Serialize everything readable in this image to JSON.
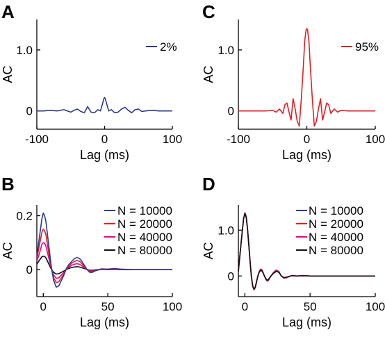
{
  "chart_data": [
    {
      "panel": "A",
      "type": "line",
      "xlabel": "Lag (ms)",
      "ylabel": "AC",
      "xlim": [
        -100,
        100
      ],
      "ylim": [
        -0.3,
        1.5
      ],
      "xticks": [
        -100,
        0,
        100
      ],
      "yticks": [
        0,
        1.0
      ],
      "ytick_labels": [
        "0",
        "1.0"
      ],
      "legend_position": "top-right",
      "series": [
        {
          "name": "2%",
          "color": "#2b3990",
          "x": [
            -100,
            -90,
            -80,
            -70,
            -60,
            -55,
            -50,
            -45,
            -40,
            -35,
            -30,
            -25,
            -20,
            -15,
            -10,
            -6,
            -3,
            -1,
            0,
            1,
            3,
            6,
            10,
            15,
            20,
            25,
            30,
            35,
            40,
            45,
            50,
            55,
            60,
            70,
            80,
            90,
            100
          ],
          "y": [
            0,
            0,
            0.01,
            0,
            0.02,
            0.0,
            -0.02,
            0.01,
            0.03,
            -0.01,
            -0.03,
            0.07,
            -0.02,
            -0.03,
            0.02,
            0.0,
            0.12,
            0.2,
            0.22,
            0.2,
            0.12,
            0.0,
            0.02,
            -0.03,
            -0.02,
            0.03,
            0.06,
            0.01,
            -0.03,
            0.02,
            0.03,
            -0.01,
            0,
            0.01,
            0,
            0,
            0
          ]
        }
      ]
    },
    {
      "panel": "C",
      "type": "line",
      "xlabel": "Lag (ms)",
      "ylabel": "AC",
      "xlim": [
        -100,
        100
      ],
      "ylim": [
        -0.3,
        1.5
      ],
      "xticks": [
        -100,
        0,
        100
      ],
      "yticks": [
        0,
        1.0
      ],
      "ytick_labels": [
        "0",
        "1.0"
      ],
      "legend_position": "top-right",
      "series": [
        {
          "name": "95%",
          "color": "#e31e24",
          "x": [
            -100,
            -80,
            -70,
            -60,
            -50,
            -45,
            -40,
            -35,
            -32,
            -29,
            -26,
            -23,
            -20,
            -17,
            -14,
            -11,
            -8,
            -5,
            -3,
            -1,
            0,
            1,
            3,
            5,
            8,
            11,
            14,
            17,
            20,
            23,
            26,
            29,
            32,
            35,
            40,
            45,
            50,
            60,
            70,
            80,
            100
          ],
          "y": [
            0,
            0,
            0,
            0,
            0.01,
            -0.02,
            0.03,
            -0.04,
            0.1,
            0.13,
            -0.02,
            -0.15,
            0.2,
            0.03,
            -0.17,
            -0.25,
            0.2,
            0.75,
            1.15,
            1.33,
            1.35,
            1.33,
            1.15,
            0.75,
            0.2,
            -0.25,
            -0.17,
            0.03,
            0.2,
            -0.15,
            -0.02,
            0.13,
            0.1,
            -0.04,
            0.03,
            -0.02,
            0.01,
            0,
            0,
            0,
            0
          ]
        }
      ]
    },
    {
      "panel": "B",
      "type": "line",
      "xlabel": "Lag (ms)",
      "ylabel": "AC",
      "xlim": [
        -5,
        100
      ],
      "ylim": [
        -0.1,
        0.24
      ],
      "xticks": [
        0,
        50,
        100
      ],
      "yticks": [
        0,
        0.2
      ],
      "ytick_labels": [
        "0",
        "0.2"
      ],
      "legend_position": "top-right",
      "x": [
        -5,
        -3,
        -1,
        0,
        1,
        2,
        4,
        6,
        8,
        10,
        12,
        14,
        16,
        18,
        20,
        22,
        24,
        26,
        28,
        30,
        32,
        34,
        36,
        38,
        40,
        45,
        50,
        55,
        60,
        70,
        80,
        90,
        100
      ],
      "series": [
        {
          "name": "N = 10000",
          "color": "#2b3990",
          "y": [
            0.05,
            0.12,
            0.19,
            0.21,
            0.2,
            0.18,
            0.1,
            0.02,
            -0.04,
            -0.065,
            -0.06,
            -0.04,
            -0.02,
            0.005,
            0.02,
            0.03,
            0.04,
            0.045,
            0.042,
            0.03,
            0.015,
            0.0,
            -0.01,
            -0.01,
            -0.005,
            0.003,
            0.002,
            0.004,
            0.002,
            0.0,
            0,
            0,
            0
          ]
        },
        {
          "name": "N = 20000",
          "color": "#e31e24",
          "y": [
            0.04,
            0.09,
            0.14,
            0.15,
            0.145,
            0.13,
            0.07,
            0.01,
            -0.03,
            -0.048,
            -0.045,
            -0.03,
            -0.015,
            0.004,
            0.015,
            0.024,
            0.03,
            0.034,
            0.031,
            0.022,
            0.011,
            0.0,
            -0.007,
            -0.007,
            -0.004,
            0.002,
            0.002,
            0.003,
            0.001,
            0.0,
            0,
            0,
            0
          ]
        },
        {
          "name": "N = 40000",
          "color": "#ec008c",
          "y": [
            0.03,
            0.06,
            0.095,
            0.1,
            0.098,
            0.088,
            0.048,
            0.008,
            -0.02,
            -0.032,
            -0.03,
            -0.02,
            -0.01,
            0.002,
            0.01,
            0.016,
            0.02,
            0.022,
            0.02,
            0.014,
            0.007,
            0.0,
            -0.005,
            -0.005,
            -0.003,
            0.001,
            0.001,
            0.002,
            0.001,
            0.0,
            0,
            0,
            0
          ]
        },
        {
          "name": "N = 80000",
          "color": "#111111",
          "y": [
            0.02,
            0.035,
            0.048,
            0.05,
            0.049,
            0.044,
            0.024,
            0.004,
            -0.01,
            -0.016,
            -0.015,
            -0.01,
            -0.005,
            0.001,
            0.005,
            0.008,
            0.01,
            0.011,
            0.01,
            0.007,
            0.004,
            0.0,
            -0.002,
            -0.002,
            -0.001,
            0.001,
            0.0,
            0.001,
            0.0,
            0.0,
            0,
            0,
            0
          ]
        }
      ]
    },
    {
      "panel": "D",
      "type": "line",
      "xlabel": "Lag (ms)",
      "ylabel": "AC",
      "xlim": [
        -5,
        100
      ],
      "ylim": [
        -0.45,
        1.55
      ],
      "xticks": [
        0,
        50,
        100
      ],
      "yticks": [
        0,
        1.0
      ],
      "ytick_labels": [
        "0",
        "1.0"
      ],
      "legend_position": "top-right",
      "x": [
        -5,
        -3,
        -1,
        0,
        1,
        2,
        3,
        4,
        5,
        6,
        7,
        8,
        9,
        10,
        11,
        12,
        13,
        14,
        15,
        16,
        17,
        18,
        19,
        20,
        22,
        24,
        26,
        28,
        30,
        32,
        34,
        36,
        40,
        45,
        50,
        60,
        70,
        80,
        90,
        100
      ],
      "series": [
        {
          "name": "N = 10000",
          "color": "#2b3990",
          "y": [
            0.1,
            0.7,
            1.25,
            1.38,
            1.3,
            1.05,
            0.7,
            0.32,
            -0.02,
            -0.22,
            -0.3,
            -0.25,
            -0.12,
            0.0,
            0.1,
            0.15,
            0.14,
            0.08,
            0.0,
            -0.07,
            -0.11,
            -0.1,
            -0.05,
            0.0,
            0.08,
            0.13,
            0.1,
            0.0,
            -0.05,
            -0.04,
            -0.01,
            0.01,
            0.0,
            0.01,
            0.0,
            0,
            0,
            0,
            0,
            0
          ]
        },
        {
          "name": "N = 20000",
          "color": "#e31e24",
          "y": [
            0.1,
            0.7,
            1.25,
            1.37,
            1.29,
            1.04,
            0.69,
            0.31,
            -0.02,
            -0.22,
            -0.3,
            -0.25,
            -0.12,
            0.0,
            0.09,
            0.14,
            0.13,
            0.075,
            0.0,
            -0.065,
            -0.1,
            -0.09,
            -0.045,
            0.0,
            0.075,
            0.12,
            0.09,
            0.0,
            -0.045,
            -0.035,
            -0.01,
            0.01,
            0.0,
            0.008,
            0.0,
            0,
            0,
            0,
            0,
            0
          ]
        },
        {
          "name": "N = 40000",
          "color": "#ec008c",
          "y": [
            0.1,
            0.7,
            1.25,
            1.37,
            1.29,
            1.04,
            0.69,
            0.31,
            -0.02,
            -0.21,
            -0.29,
            -0.24,
            -0.11,
            0.0,
            0.085,
            0.13,
            0.12,
            0.07,
            0.0,
            -0.06,
            -0.095,
            -0.085,
            -0.04,
            0.0,
            0.07,
            0.11,
            0.085,
            0.0,
            -0.04,
            -0.03,
            -0.01,
            0.008,
            0.0,
            0.006,
            0.0,
            0,
            0,
            0,
            0,
            0
          ]
        },
        {
          "name": "N = 80000",
          "color": "#111111",
          "y": [
            0.1,
            0.7,
            1.25,
            1.36,
            1.28,
            1.03,
            0.68,
            0.3,
            -0.02,
            -0.21,
            -0.29,
            -0.24,
            -0.11,
            0.0,
            0.08,
            0.12,
            0.11,
            0.065,
            0.0,
            -0.055,
            -0.09,
            -0.08,
            -0.035,
            0.0,
            0.06,
            0.1,
            0.08,
            0.0,
            -0.035,
            -0.025,
            -0.008,
            0.006,
            0.0,
            0.005,
            0.0,
            0,
            0,
            0,
            0,
            0
          ]
        }
      ]
    }
  ]
}
